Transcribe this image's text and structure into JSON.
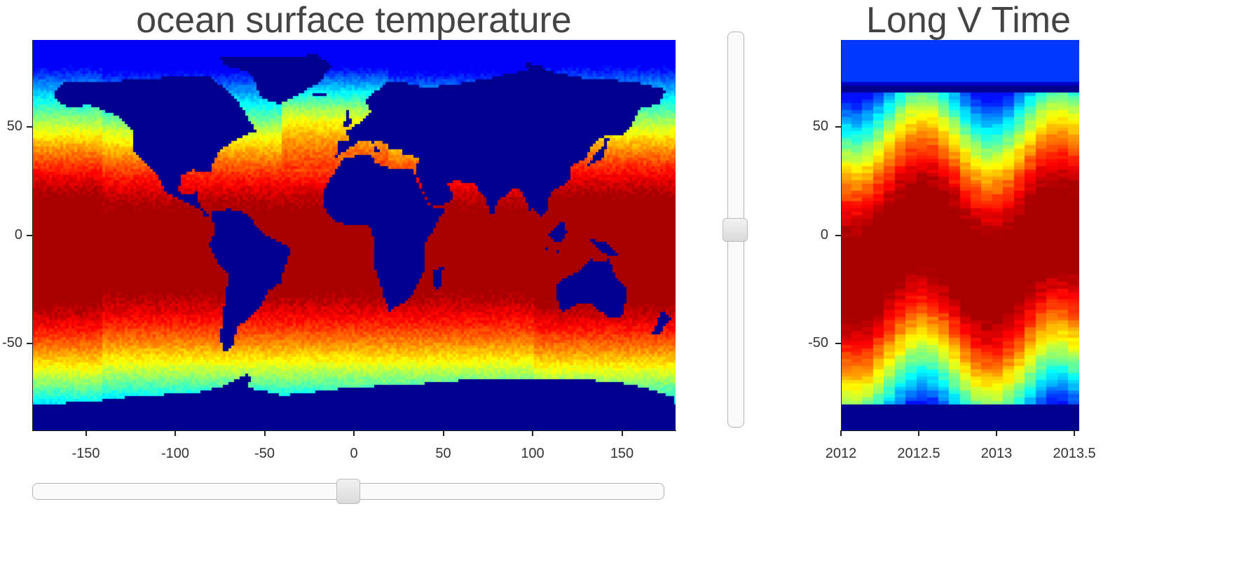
{
  "chart_data": [
    {
      "type": "heatmap",
      "title": "ocean surface temperature",
      "xlabel": "",
      "ylabel": "",
      "xlim": [
        -180,
        180
      ],
      "ylim": [
        -90,
        90
      ],
      "x_ticks": [
        -150,
        -100,
        -50,
        0,
        50,
        100,
        150
      ],
      "y_ticks": [
        50,
        0,
        -50
      ],
      "colormap": "jet",
      "land_color": "#00008f"
    },
    {
      "type": "heatmap",
      "title": "Long V Time",
      "xlabel": "",
      "ylabel": "",
      "xlim": [
        2012,
        2013.75
      ],
      "ylim": [
        -90,
        90
      ],
      "x_ticks": [
        "2012",
        "2012.5",
        "2013",
        "2013.5"
      ],
      "y_ticks": [
        50,
        0,
        -50
      ],
      "colormap": "jet"
    }
  ],
  "controls": {
    "vertical_slider_level": 0.5,
    "horizontal_slider_level": 0.5
  },
  "labels": {
    "map_title": "ocean surface temperature",
    "lvt_title": "Long V Time"
  }
}
